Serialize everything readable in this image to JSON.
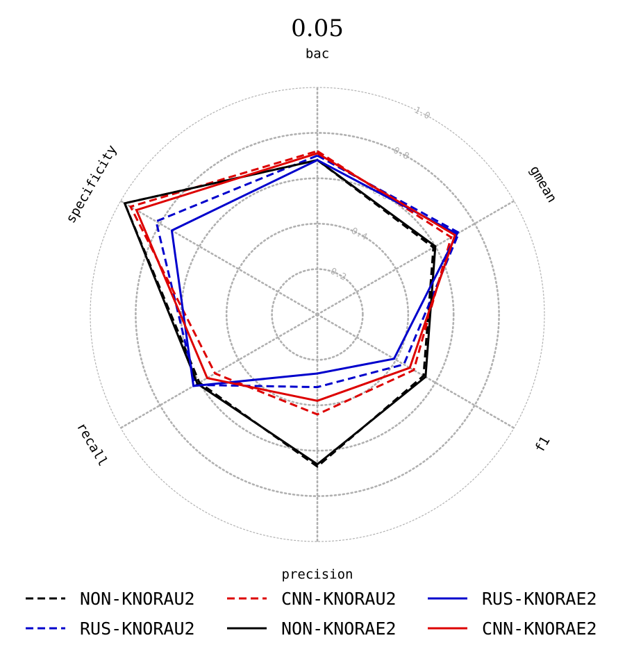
{
  "chart_data": {
    "type": "radar",
    "title": "0.05",
    "axes": [
      "bac",
      "gmean",
      "f1",
      "precision",
      "recall",
      "specificity"
    ],
    "r_ticks": [
      0.2,
      0.4,
      0.6,
      0.8,
      1.0
    ],
    "r_tick_labels": [
      "0.2",
      "0.4",
      "0.6",
      "0.8",
      "1.0"
    ],
    "rlim": [
      0,
      1.0
    ],
    "grid": true,
    "legend_position": "bottom",
    "series": [
      {
        "name": "NON-KNORAU2",
        "color": "#000000",
        "dash": true,
        "values": [
          0.68,
          0.59,
          0.54,
          0.67,
          0.6,
          0.98
        ]
      },
      {
        "name": "RUS-KNORAU2",
        "color": "#0000cc",
        "dash": true,
        "values": [
          0.7,
          0.72,
          0.44,
          0.32,
          0.62,
          0.82
        ]
      },
      {
        "name": "CNN-KNORAU2",
        "color": "#dd0000",
        "dash": true,
        "values": [
          0.72,
          0.68,
          0.49,
          0.44,
          0.52,
          0.95
        ]
      },
      {
        "name": "NON-KNORAE2",
        "color": "#000000",
        "dash": false,
        "values": [
          0.68,
          0.6,
          0.55,
          0.66,
          0.61,
          0.98
        ]
      },
      {
        "name": "RUS-KNORAE2",
        "color": "#0000cc",
        "dash": false,
        "values": [
          0.68,
          0.71,
          0.39,
          0.26,
          0.63,
          0.74
        ]
      },
      {
        "name": "CNN-KNORAE2",
        "color": "#dd0000",
        "dash": false,
        "values": [
          0.71,
          0.7,
          0.47,
          0.38,
          0.56,
          0.92
        ]
      }
    ]
  }
}
